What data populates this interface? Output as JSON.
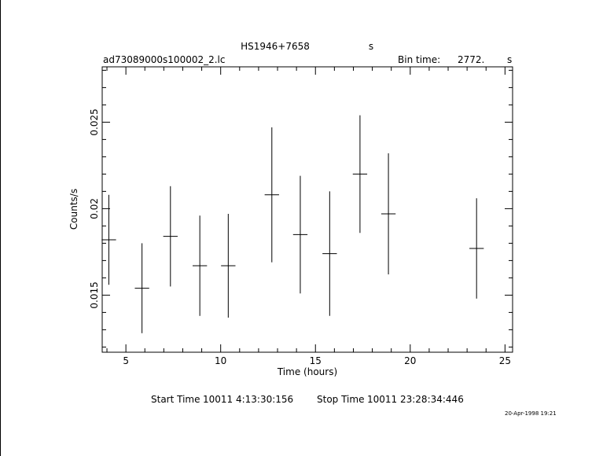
{
  "header": {
    "object": "HS1946+7658",
    "object_unit": "s",
    "file": "ad73089000s100002_2.lc",
    "bin_label": "Bin time:",
    "bin_value": "2772.",
    "bin_unit": "s"
  },
  "footer": {
    "start_label": "Start Time",
    "start_value": "10011  4:13:30:156",
    "stop_label": "Stop Time",
    "stop_value": "10011 23:28:34:446",
    "stamp": "20-Apr-1998 19:21"
  },
  "chart_data": {
    "type": "scatter",
    "xlabel": "Time (hours)",
    "ylabel": "Counts/s",
    "xlim": [
      3.75,
      25.4
    ],
    "ylim": [
      0.0117,
      0.0282
    ],
    "xticks": [
      5,
      10,
      15,
      20,
      25
    ],
    "yticks": [
      0.015,
      0.02,
      0.025
    ],
    "xtick_labels": [
      "5",
      "10",
      "15",
      "20",
      "25"
    ],
    "ytick_labels": [
      "0.015",
      "0.02",
      "0.025"
    ],
    "points": [
      {
        "x": 4.1,
        "xerr": 0.38,
        "y": 0.0182,
        "yerr": 0.0026
      },
      {
        "x": 5.85,
        "xerr": 0.38,
        "y": 0.0154,
        "yerr": 0.0026
      },
      {
        "x": 7.35,
        "xerr": 0.38,
        "y": 0.0184,
        "yerr": 0.0029
      },
      {
        "x": 8.9,
        "xerr": 0.38,
        "y": 0.0167,
        "yerr": 0.0029
      },
      {
        "x": 10.4,
        "xerr": 0.38,
        "y": 0.0167,
        "yerr": 0.003
      },
      {
        "x": 12.7,
        "xerr": 0.38,
        "y": 0.0208,
        "yerr": 0.0039
      },
      {
        "x": 14.2,
        "xerr": 0.38,
        "y": 0.0185,
        "yerr": 0.0034
      },
      {
        "x": 15.75,
        "xerr": 0.38,
        "y": 0.0174,
        "yerr": 0.0036
      },
      {
        "x": 17.35,
        "xerr": 0.38,
        "y": 0.022,
        "yerr": 0.0034
      },
      {
        "x": 18.85,
        "xerr": 0.38,
        "y": 0.0197,
        "yerr": 0.0035
      },
      {
        "x": 23.5,
        "xerr": 0.38,
        "y": 0.0177,
        "yerr": 0.0029
      }
    ],
    "grid": false,
    "legend": "none"
  }
}
